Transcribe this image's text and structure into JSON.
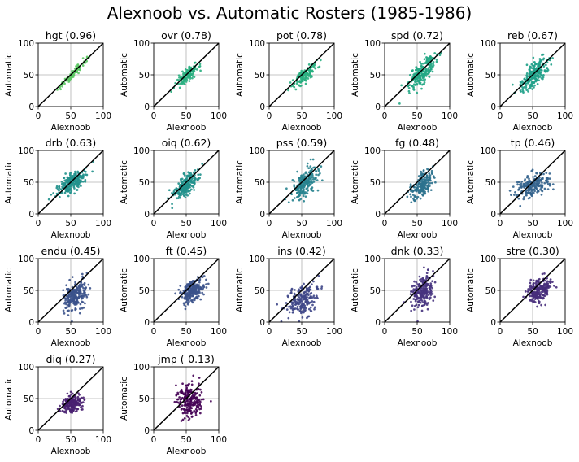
{
  "title": "Alexnoob vs. Automatic Rosters (1985-1986)",
  "chart_data": {
    "type": "scatter",
    "title": "Alexnoob vs. Automatic Rosters (1985-1986)",
    "xlabel": "Alexnoob",
    "ylabel": "Automatic",
    "xlim": [
      0,
      100
    ],
    "ylim": [
      0,
      100
    ],
    "xticks": [
      "0",
      "50",
      "100"
    ],
    "yticks": [
      "0",
      "50",
      "100"
    ],
    "grid": "lines at 50",
    "reference_line": "y = x",
    "panels": [
      {
        "label": "hgt (0.96)",
        "color": "#5cc863",
        "cx": 52,
        "cy": 50,
        "sx": 10,
        "sy": 11,
        "corr": 0.96,
        "n": 95
      },
      {
        "label": "ovr (0.78)",
        "color": "#29af7f",
        "cx": 52,
        "cy": 50,
        "sx": 8,
        "sy": 8,
        "corr": 0.78,
        "n": 140
      },
      {
        "label": "pot (0.78)",
        "color": "#29af7f",
        "cx": 55,
        "cy": 50,
        "sx": 9,
        "sy": 9,
        "corr": 0.78,
        "n": 140
      },
      {
        "label": "spd (0.72)",
        "color": "#22a784",
        "cx": 58,
        "cy": 55,
        "sx": 11,
        "sy": 14,
        "corr": 0.72,
        "n": 220
      },
      {
        "label": "reb (0.67)",
        "color": "#1fa088",
        "cx": 52,
        "cy": 50,
        "sx": 11,
        "sy": 13,
        "corr": 0.67,
        "n": 220
      },
      {
        "label": "drb (0.63)",
        "color": "#21918c",
        "cx": 52,
        "cy": 50,
        "sx": 11,
        "sy": 9,
        "corr": 0.63,
        "n": 220
      },
      {
        "label": "oiq (0.62)",
        "color": "#21918c",
        "cx": 50,
        "cy": 45,
        "sx": 9,
        "sy": 10,
        "corr": 0.62,
        "n": 220
      },
      {
        "label": "pss (0.59)",
        "color": "#26828e",
        "cx": 55,
        "cy": 48,
        "sx": 10,
        "sy": 13,
        "corr": 0.59,
        "n": 200
      },
      {
        "label": "fg (0.48)",
        "color": "#2c728e",
        "cx": 58,
        "cy": 45,
        "sx": 8,
        "sy": 11,
        "corr": 0.48,
        "n": 200
      },
      {
        "label": "tp (0.46)",
        "color": "#33638d",
        "cx": 50,
        "cy": 45,
        "sx": 14,
        "sy": 9,
        "corr": 0.46,
        "n": 220
      },
      {
        "label": "endu (0.45)",
        "color": "#3b528b",
        "cx": 57,
        "cy": 42,
        "sx": 9,
        "sy": 12,
        "corr": 0.45,
        "n": 220
      },
      {
        "label": "ft (0.45)",
        "color": "#3b528b",
        "cx": 58,
        "cy": 48,
        "sx": 9,
        "sy": 10,
        "corr": 0.45,
        "n": 220
      },
      {
        "label": "ins (0.42)",
        "color": "#3f4788",
        "cx": 52,
        "cy": 35,
        "sx": 12,
        "sy": 13,
        "corr": 0.42,
        "n": 220
      },
      {
        "label": "dnk (0.33)",
        "color": "#46337e",
        "cx": 58,
        "cy": 48,
        "sx": 9,
        "sy": 13,
        "corr": 0.33,
        "n": 220
      },
      {
        "label": "stre (0.30)",
        "color": "#472d7b",
        "cx": 60,
        "cy": 50,
        "sx": 9,
        "sy": 9,
        "corr": 0.3,
        "n": 220
      },
      {
        "label": "diq (0.27)",
        "color": "#481f70",
        "cx": 52,
        "cy": 42,
        "sx": 8,
        "sy": 7,
        "corr": 0.27,
        "n": 200
      },
      {
        "label": "jmp (-0.13)",
        "color": "#440154",
        "cx": 55,
        "cy": 48,
        "sx": 9,
        "sy": 13,
        "corr": -0.13,
        "n": 220
      }
    ]
  }
}
